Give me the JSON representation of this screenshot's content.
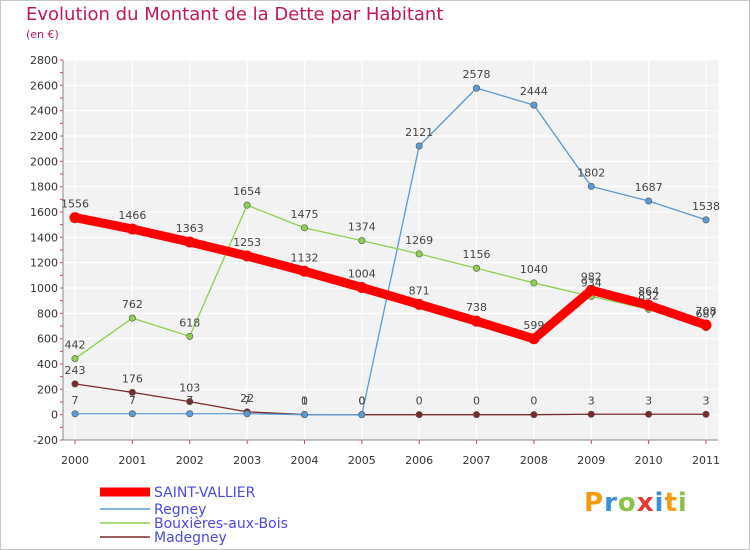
{
  "title": "Evolution du Montant de la Dette par Habitant",
  "subtitle": "(en €)",
  "logo": {
    "letters": [
      "P",
      "r",
      "o",
      "x",
      "i",
      "t",
      "i"
    ],
    "colors": [
      "#f39c12",
      "#3a8fd8",
      "#8bc34a",
      "#e53935",
      "#3a8fd8",
      "#f39c12",
      "#8bc34a"
    ]
  },
  "chart_data": {
    "type": "line",
    "title": "Evolution du Montant de la Dette par Habitant",
    "subtitle": "(en €)",
    "x": [
      "2000",
      "2001",
      "2002",
      "2003",
      "2004",
      "2005",
      "2006",
      "2007",
      "2008",
      "2009",
      "2010",
      "2011"
    ],
    "ylim": [
      -200,
      2800
    ],
    "yticks": [
      "-200",
      "0",
      "200",
      "400",
      "600",
      "800",
      "1000",
      "1200",
      "1400",
      "1600",
      "1800",
      "2000",
      "2200",
      "2400",
      "2600",
      "2800"
    ],
    "grid": true,
    "legend_placement": "bottom-left",
    "series": [
      {
        "name": "SAINT-VALLIER",
        "color": "#ff0000",
        "values": [
          1556,
          1466,
          1363,
          1253,
          1132,
          1004,
          871,
          738,
          599,
          982,
          864,
          708
        ]
      },
      {
        "name": "Regney",
        "color": "#5b9bd5",
        "values": [
          7,
          7,
          7,
          7,
          0,
          0,
          2121,
          2578,
          2444,
          1802,
          1687,
          1538
        ]
      },
      {
        "name": "Bouxières-aux-Bois",
        "color": "#8ed050",
        "values": [
          442,
          762,
          618,
          1654,
          1475,
          1374,
          1269,
          1156,
          1040,
          934,
          832,
          687
        ]
      },
      {
        "name": "Madegney",
        "color": "#7a2a2a",
        "values": [
          243,
          176,
          103,
          22,
          1,
          0,
          0,
          0,
          0,
          3,
          3,
          3
        ]
      }
    ]
  }
}
